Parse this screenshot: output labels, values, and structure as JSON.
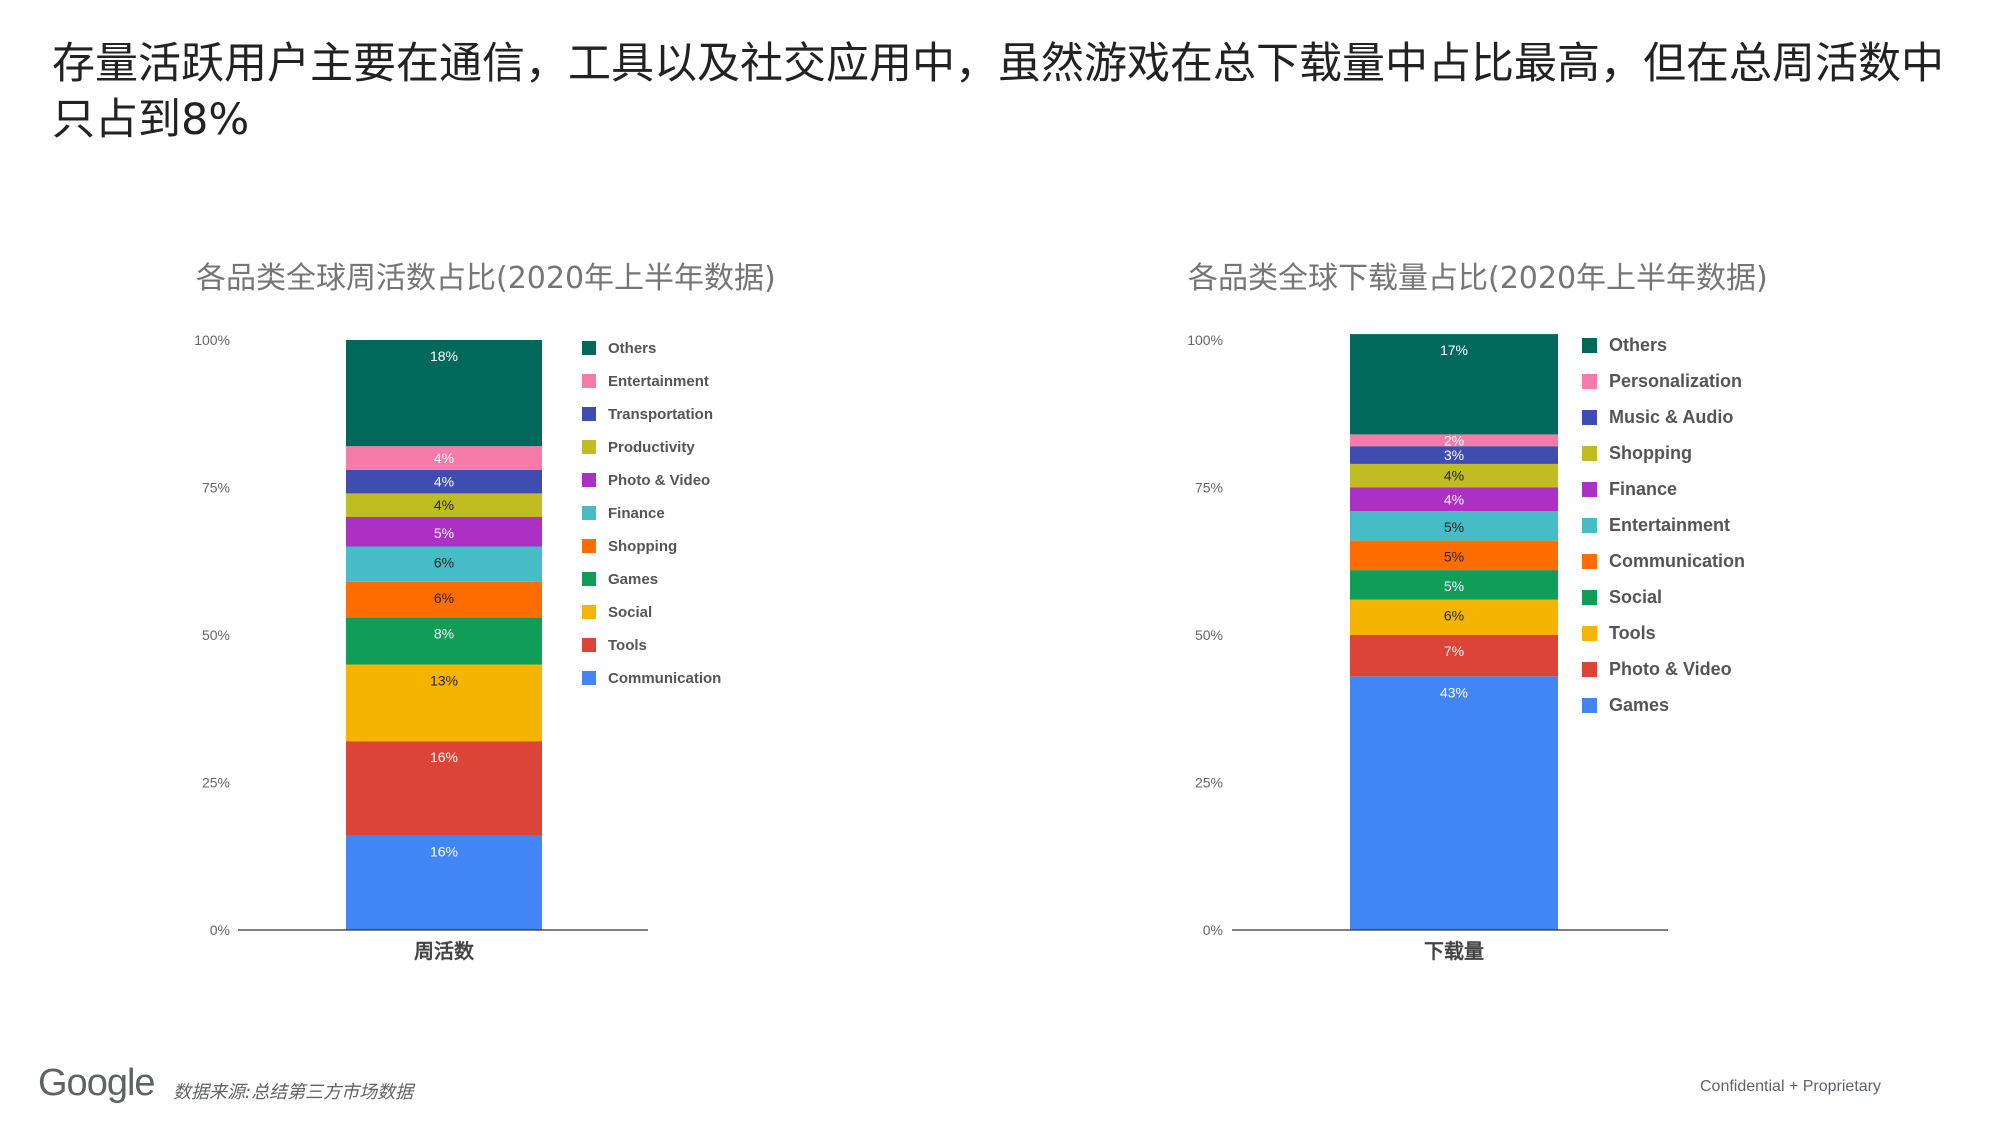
{
  "headline": "存量活跃用户主要在通信，工具以及社交应用中，虽然游戏在总下载量中占比最高，但在总周活数中只占到8%",
  "footer": {
    "logo": "Google",
    "source": "数据来源:总结第三方市场数据",
    "confidential": "Confidential + Proprietary"
  },
  "chart_data": [
    {
      "type": "bar",
      "stacked": true,
      "title": "各品类全球周活数占比(2020年上半年数据)",
      "categories": [
        "周活数"
      ],
      "ylim": [
        0,
        100
      ],
      "y_ticks": [
        "0%",
        "25%",
        "50%",
        "75%",
        "100%"
      ],
      "legend_position": "right",
      "series": [
        {
          "name": "Communication",
          "values": [
            16
          ],
          "label": "16%",
          "color": "#4285f4"
        },
        {
          "name": "Tools",
          "values": [
            16
          ],
          "label": "16%",
          "color": "#db4437"
        },
        {
          "name": "Social",
          "values": [
            13
          ],
          "label": "13%",
          "color": "#f4b400"
        },
        {
          "name": "Games",
          "values": [
            8
          ],
          "label": "8%",
          "color": "#0f9d58"
        },
        {
          "name": "Shopping",
          "values": [
            6
          ],
          "label": "6%",
          "color": "#ff6d00"
        },
        {
          "name": "Finance",
          "values": [
            6
          ],
          "label": "6%",
          "color": "#46bdc6"
        },
        {
          "name": "Photo & Video",
          "values": [
            5
          ],
          "label": "5%",
          "color": "#ab30c4"
        },
        {
          "name": "Productivity",
          "values": [
            4
          ],
          "label": "4%",
          "color": "#c2bc23"
        },
        {
          "name": "Transportation",
          "values": [
            4
          ],
          "label": "4%",
          "color": "#3f4cb0"
        },
        {
          "name": "Entertainment",
          "values": [
            4
          ],
          "label": "4%",
          "color": "#f77ba8"
        },
        {
          "name": "Others",
          "values": [
            18
          ],
          "label": "18%",
          "color": "#00695c"
        }
      ]
    },
    {
      "type": "bar",
      "stacked": true,
      "title": "各品类全球下载量占比(2020年上半年数据)",
      "categories": [
        "下载量"
      ],
      "ylim": [
        0,
        100
      ],
      "y_ticks": [
        "0%",
        "25%",
        "50%",
        "75%",
        "100%"
      ],
      "legend_position": "right",
      "series": [
        {
          "name": "Games",
          "values": [
            43
          ],
          "label": "43%",
          "color": "#4285f4"
        },
        {
          "name": "Photo & Video",
          "values": [
            7
          ],
          "label": "7%",
          "color": "#db4437"
        },
        {
          "name": "Tools",
          "values": [
            6
          ],
          "label": "6%",
          "color": "#f4b400"
        },
        {
          "name": "Social",
          "values": [
            5
          ],
          "label": "5%",
          "color": "#0f9d58"
        },
        {
          "name": "Communication",
          "values": [
            5
          ],
          "label": "5%",
          "color": "#ff6d00"
        },
        {
          "name": "Entertainment",
          "values": [
            5
          ],
          "label": "5%",
          "color": "#46bdc6"
        },
        {
          "name": "Finance",
          "values": [
            4
          ],
          "label": "4%",
          "color": "#ab30c4"
        },
        {
          "name": "Shopping",
          "values": [
            4
          ],
          "label": "4%",
          "color": "#c2bc23"
        },
        {
          "name": "Music & Audio",
          "values": [
            3
          ],
          "label": "3%",
          "color": "#3f4cb0"
        },
        {
          "name": "Personalization",
          "values": [
            2
          ],
          "label": "2%",
          "color": "#f77ba8"
        },
        {
          "name": "Others",
          "values": [
            17
          ],
          "label": "17%",
          "color": "#00695c"
        }
      ]
    }
  ]
}
